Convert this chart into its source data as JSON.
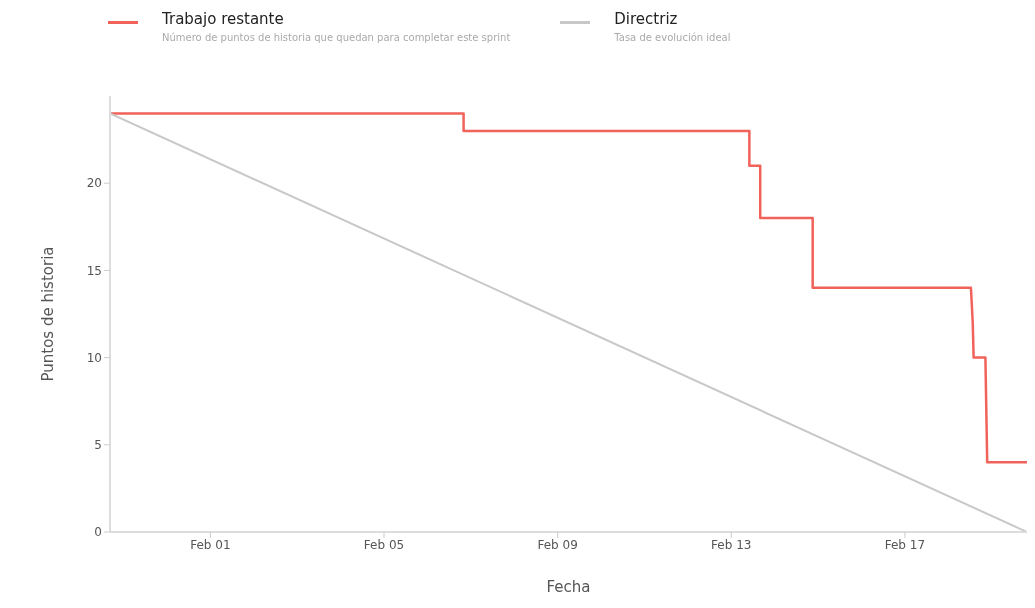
{
  "chart_data": {
    "type": "line",
    "xlabel": "Fecha",
    "ylabel": "Puntos de historia",
    "annotations": [
      "Número de puntos de historia que quedan para completar este sprint",
      "Tasa de evolución ideal"
    ],
    "series": [
      {
        "name": "Trabajo restante",
        "color": "#f0625a",
        "x": [
          "--01-29T16:30",
          "--02-06T20:00",
          "--02-06T20:00",
          "--02-13T10:00",
          "--02-13T10:00",
          "--02-13T16:00",
          "--02-13T16:00",
          "--02-14T21:00",
          "--02-14T21:00",
          "--02-18T12:30",
          "--02-18T13:30",
          "--02-18T14:00",
          "--02-18T20:30",
          "--02-18T21:00",
          "--02-18T21:30",
          "--02-19T19:30"
        ],
        "values": [
          24,
          24,
          23,
          23,
          21,
          21,
          18,
          18,
          14,
          14,
          12,
          10,
          10,
          7,
          4,
          4
        ]
      },
      {
        "name": "Directriz",
        "color": "#c8c8c8",
        "x": [
          "--01-29T16:30",
          "--02-19T19:30"
        ],
        "values": [
          24,
          0
        ]
      }
    ],
    "xlim": [
      "--01-29T16:30",
      "--02-19T19:30"
    ],
    "xticks": [
      {
        "value": "--02-01",
        "label": "Feb 01"
      },
      {
        "value": "--02-05",
        "label": "Feb 05"
      },
      {
        "value": "--02-09",
        "label": "Feb 09"
      },
      {
        "value": "--02-13",
        "label": "Feb 13"
      },
      {
        "value": "--02-17",
        "label": "Feb 17"
      }
    ],
    "ylim": [
      0,
      25
    ],
    "yticks": [
      0,
      5,
      10,
      15,
      20
    ],
    "grid": false,
    "legend": "top",
    "marker": "none",
    "line_style": "solid"
  }
}
